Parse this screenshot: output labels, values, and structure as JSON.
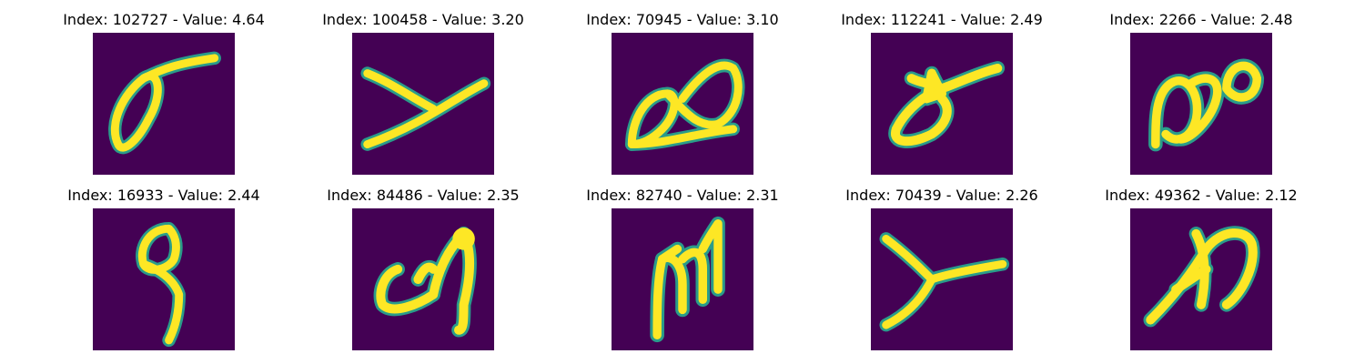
{
  "colors": {
    "background": "#440154",
    "edge": "#2a9c8a",
    "stroke": "#fde725"
  },
  "panels": [
    {
      "index": "102727",
      "value": "4.64",
      "title": "Index: 102727 - Value: 4.64"
    },
    {
      "index": "100458",
      "value": "3.20",
      "title": "Index: 100458 - Value: 3.20"
    },
    {
      "index": "70945",
      "value": "3.10",
      "title": "Index: 70945 - Value: 3.10"
    },
    {
      "index": "112241",
      "value": "2.49",
      "title": "Index: 112241 - Value: 2.49"
    },
    {
      "index": "2266",
      "value": "2.48",
      "title": "Index: 2266 - Value: 2.48"
    },
    {
      "index": "16933",
      "value": "2.44",
      "title": "Index: 16933 - Value: 2.44"
    },
    {
      "index": "84486",
      "value": "2.35",
      "title": "Index: 84486 - Value: 2.35"
    },
    {
      "index": "82740",
      "value": "2.31",
      "title": "Index: 82740 - Value: 2.31"
    },
    {
      "index": "70439",
      "value": "2.26",
      "title": "Index: 70439 - Value: 2.26"
    },
    {
      "index": "49362",
      "value": "2.12",
      "title": "Index: 49362 - Value: 2.12"
    }
  ]
}
